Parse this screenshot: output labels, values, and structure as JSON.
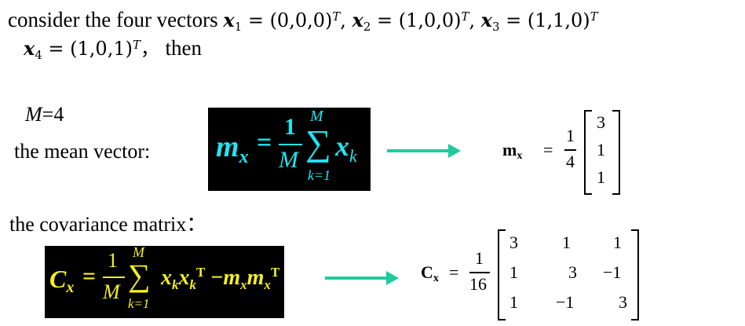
{
  "intro": {
    "lead": "consider the four vectors",
    "vectors": [
      {
        "name": "x",
        "sub": "1",
        "value": "(0,0,0)",
        "sup": "T",
        "sep": ","
      },
      {
        "name": "x",
        "sub": "2",
        "value": "(1,0,0)",
        "sup": "T",
        "sep": ","
      },
      {
        "name": "x",
        "sub": "3",
        "value": "(1,1,0)",
        "sup": "T",
        "sep": ""
      },
      {
        "name": "x",
        "sub": "4",
        "value": "(1,0,1)",
        "sup": "T",
        "sep": "，"
      }
    ],
    "then": "then"
  },
  "m_line": {
    "var": "M",
    "eq": "=4"
  },
  "mean": {
    "label": "the mean vector:",
    "formula": {
      "lhs": "m",
      "lhs_sub": "x",
      "eq": "=",
      "num": "1",
      "den": "M",
      "sum_top": "M",
      "sum_bottom": "k=1",
      "term": "x",
      "term_sub": "k"
    },
    "result": {
      "name": "m",
      "name_sub": "x",
      "eq": "=",
      "num": "1",
      "den": "4",
      "entries": [
        "3",
        "1",
        "1"
      ]
    }
  },
  "covariance": {
    "label": "the covariance matrix：",
    "formula": {
      "lhs": "C",
      "lhs_sub": "x",
      "eq": "=",
      "num": "1",
      "den": "M",
      "sum_top": "M",
      "sum_bottom": "k=1",
      "t1": "x",
      "t1_sub": "k",
      "t2": "x",
      "t2_sub": "k",
      "t2_sup": "T",
      "minus": "−",
      "t3": "m",
      "t3_sub": "x",
      "t4": "m",
      "t4_sub": "x",
      "t4_sup": "T"
    },
    "result": {
      "name": "C",
      "name_sub": "x",
      "eq": "=",
      "num": "1",
      "den": "16",
      "rows": [
        [
          "3",
          "1",
          "1"
        ],
        [
          "1",
          "3",
          "−1"
        ],
        [
          "1",
          "−1",
          "3"
        ]
      ]
    }
  },
  "colors": {
    "formula_bg": "#000000",
    "mean_formula": "#21e4f2",
    "cov_formula": "#f5ef20",
    "arrow": "#1dcc9f"
  }
}
